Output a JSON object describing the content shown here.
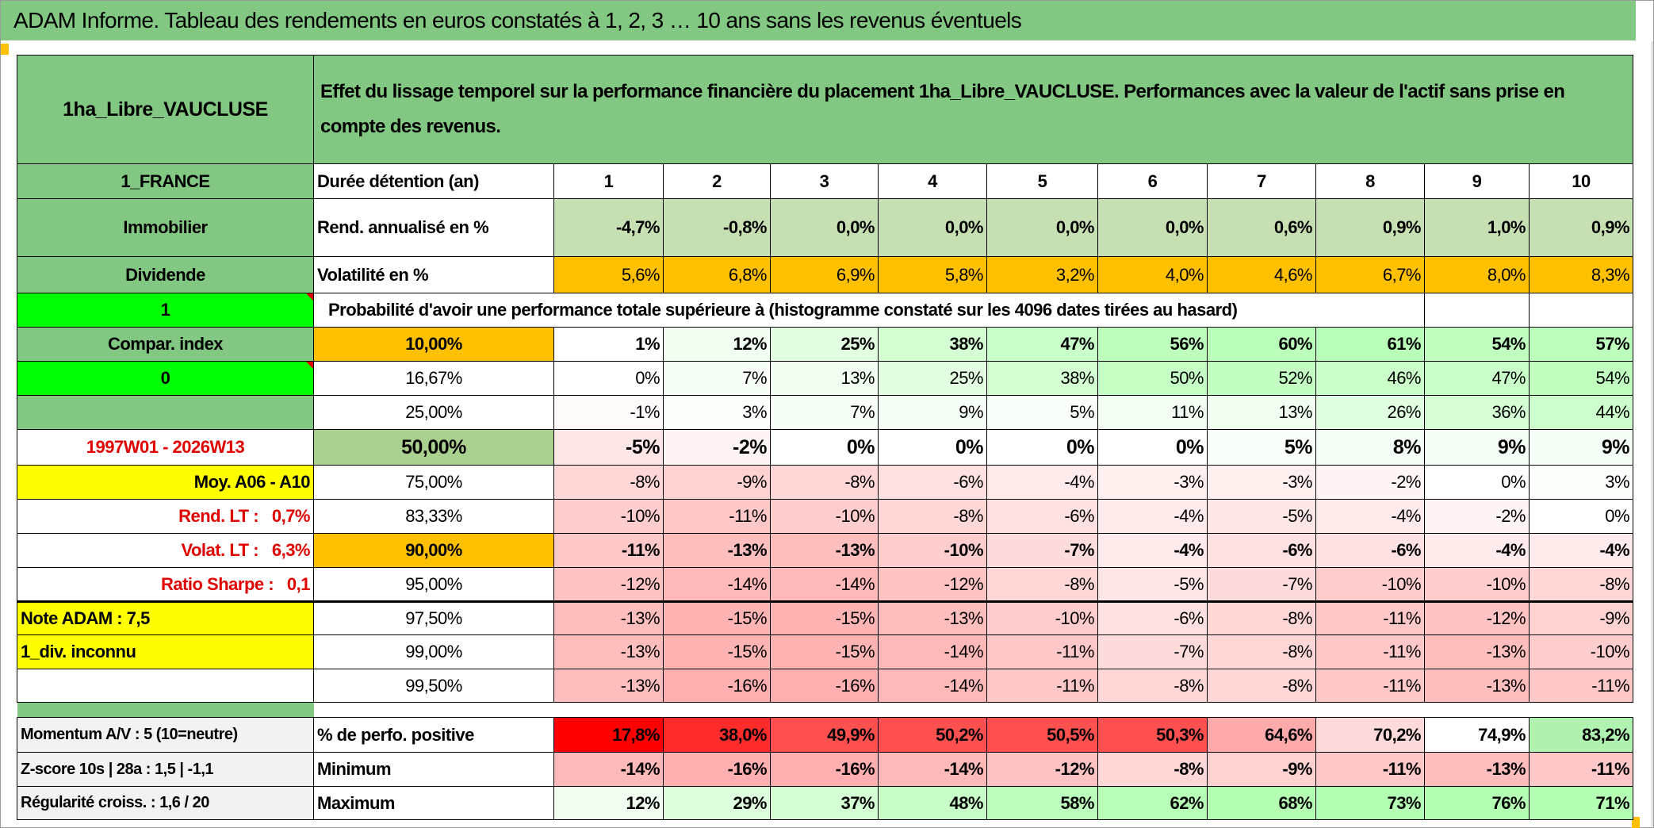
{
  "title": "ADAM Informe. Tableau des rendements en euros constatés à 1, 2, 3 … 10 ans sans les revenus éventuels",
  "header": {
    "asset": "1ha_Libre_VAUCLUSE",
    "description": "Effet du lissage temporel sur la performance financière du placement 1ha_Libre_VAUCLUSE. Performances avec la valeur de l'actif sans prise en compte des revenus."
  },
  "colors": {
    "header_green": "#82C882",
    "rend_green": "#C6E0B4",
    "orange": "#FFC000",
    "lime": "#00FF00",
    "yellow": "#FFFF00",
    "median_green": "#A9D08E",
    "alert_red": "#E00000"
  },
  "left": {
    "country": "1_FRANCE",
    "category": "Immobilier",
    "income_type": "Dividende",
    "flag1": "1",
    "compar_index": "Compar. index",
    "flag0": "0",
    "blank": "",
    "period": "1997W01 - 2026W13",
    "avg": "Moy. A06 - A10",
    "rend_lt": "Rend. LT :   0,7%",
    "volat_lt": "Volat. LT :   6,3%",
    "sharpe": "Ratio Sharpe :   0,1",
    "note": "Note ADAM : 7,5",
    "div": "1_div. inconnu"
  },
  "duration": {
    "label": "Durée détention (an)",
    "values": [
      "1",
      "2",
      "3",
      "4",
      "5",
      "6",
      "7",
      "8",
      "9",
      "10"
    ]
  },
  "rend": {
    "label": "Rend. annualisé en %",
    "values": [
      "-4,7%",
      "-0,8%",
      "0,0%",
      "0,0%",
      "0,0%",
      "0,0%",
      "0,6%",
      "0,9%",
      "1,0%",
      "0,9%"
    ]
  },
  "vol": {
    "label": "Volatilité en %",
    "values": [
      "5,6%",
      "6,8%",
      "6,9%",
      "5,8%",
      "3,2%",
      "4,0%",
      "4,6%",
      "6,7%",
      "8,0%",
      "8,3%"
    ]
  },
  "prob_header": "Probabilité d'avoir une performance totale supérieure à (histogramme constaté sur les 4096 dates tirées au hasard)",
  "quantiles": [
    {
      "q": "10,00%",
      "values": [
        "1%",
        "12%",
        "25%",
        "38%",
        "47%",
        "56%",
        "60%",
        "61%",
        "54%",
        "57%"
      ]
    },
    {
      "q": "16,67%",
      "values": [
        "0%",
        "7%",
        "13%",
        "25%",
        "38%",
        "50%",
        "52%",
        "46%",
        "47%",
        "54%"
      ]
    },
    {
      "q": "25,00%",
      "values": [
        "-1%",
        "3%",
        "7%",
        "9%",
        "5%",
        "11%",
        "13%",
        "26%",
        "36%",
        "44%"
      ]
    },
    {
      "q": "50,00%",
      "values": [
        "-5%",
        "-2%",
        "0%",
        "0%",
        "0%",
        "0%",
        "5%",
        "8%",
        "9%",
        "9%"
      ]
    },
    {
      "q": "75,00%",
      "values": [
        "-8%",
        "-9%",
        "-8%",
        "-6%",
        "-4%",
        "-3%",
        "-3%",
        "-2%",
        "0%",
        "3%"
      ]
    },
    {
      "q": "83,33%",
      "values": [
        "-10%",
        "-11%",
        "-10%",
        "-8%",
        "-6%",
        "-4%",
        "-5%",
        "-4%",
        "-2%",
        "0%"
      ]
    },
    {
      "q": "90,00%",
      "values": [
        "-11%",
        "-13%",
        "-13%",
        "-10%",
        "-7%",
        "-4%",
        "-6%",
        "-6%",
        "-4%",
        "-4%"
      ]
    },
    {
      "q": "95,00%",
      "values": [
        "-12%",
        "-14%",
        "-14%",
        "-12%",
        "-8%",
        "-5%",
        "-7%",
        "-10%",
        "-10%",
        "-8%"
      ]
    },
    {
      "q": "97,50%",
      "values": [
        "-13%",
        "-15%",
        "-15%",
        "-13%",
        "-10%",
        "-6%",
        "-8%",
        "-11%",
        "-12%",
        "-9%"
      ]
    },
    {
      "q": "99,00%",
      "values": [
        "-13%",
        "-15%",
        "-15%",
        "-14%",
        "-11%",
        "-7%",
        "-8%",
        "-11%",
        "-13%",
        "-10%"
      ]
    },
    {
      "q": "99,50%",
      "values": [
        "-13%",
        "-16%",
        "-16%",
        "-14%",
        "-11%",
        "-8%",
        "-8%",
        "-11%",
        "-13%",
        "-11%"
      ]
    }
  ],
  "bottom": [
    {
      "left": "Momentum A/V : 5 (10=neutre)",
      "label": "% de perfo. positive",
      "values": [
        "17,8%",
        "38,0%",
        "49,9%",
        "50,2%",
        "50,5%",
        "50,3%",
        "64,6%",
        "70,2%",
        "74,9%",
        "83,2%"
      ],
      "colors": [
        "#FF0000",
        "#FF2A2A",
        "#FF5050",
        "#FF5050",
        "#FF5050",
        "#FF5050",
        "#FFAAAA",
        "#FFDADA",
        "#FFFFFF",
        "#B0F2B0"
      ]
    },
    {
      "left": "Z-score 10s | 28a : 1,5 | -1,1",
      "label": "Minimum",
      "values": [
        "-14%",
        "-16%",
        "-16%",
        "-14%",
        "-12%",
        "-8%",
        "-9%",
        "-11%",
        "-13%",
        "-11%"
      ]
    },
    {
      "left": "Régularité croiss. : 1,6 / 20",
      "label": "Maximum",
      "values": [
        "12%",
        "29%",
        "37%",
        "48%",
        "58%",
        "62%",
        "68%",
        "73%",
        "76%",
        "71%"
      ]
    }
  ]
}
